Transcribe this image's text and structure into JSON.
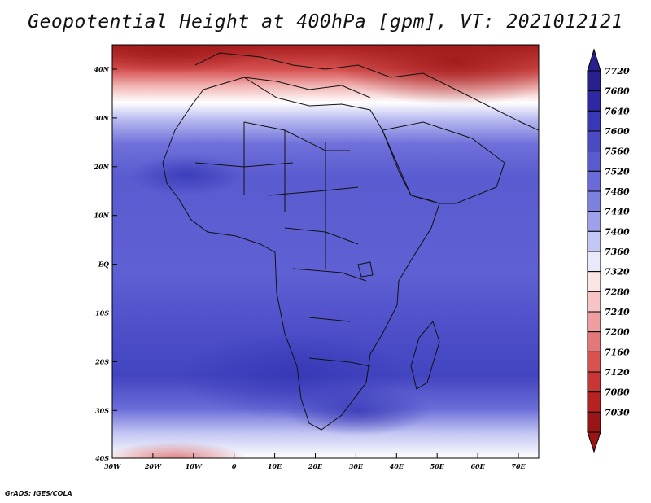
{
  "title": "Geopotential Height at 400hPa [gpm], VT: 2021012121",
  "credit": "GrADS: IGES/COLA",
  "map": {
    "lat_labels": [
      "40N",
      "30N",
      "20N",
      "10N",
      "EQ",
      "10S",
      "20S",
      "30S",
      "40S"
    ],
    "lon_labels": [
      "30W",
      "20W",
      "10W",
      "0",
      "10E",
      "20E",
      "30E",
      "40E",
      "50E",
      "60E",
      "70E"
    ]
  },
  "colorbar": {
    "labels": [
      "7720",
      "7680",
      "7640",
      "7600",
      "7560",
      "7520",
      "7480",
      "7440",
      "7400",
      "7360",
      "7320",
      "7280",
      "7240",
      "7200",
      "7160",
      "7120",
      "7080",
      "7030"
    ],
    "colors": [
      "#2a1f8f",
      "#2f28a4",
      "#3a37b6",
      "#4a4ac3",
      "#5a5bd0",
      "#6a6bd8",
      "#7e80e0",
      "#9ea1ea",
      "#c4c6f3",
      "#e8e9fb",
      "#fbe6e6",
      "#f6c4c4",
      "#ee9e9e",
      "#e47878",
      "#d95252",
      "#c83636",
      "#b42222",
      "#9a1515"
    ]
  }
}
